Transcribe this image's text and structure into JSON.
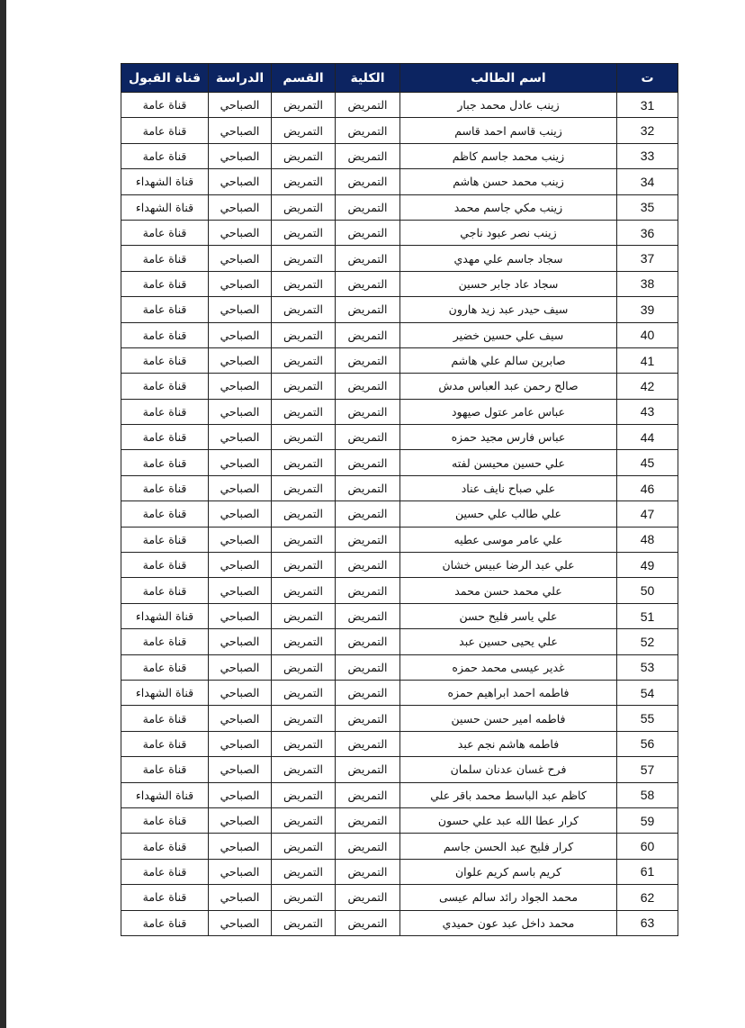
{
  "header": {
    "no": "ت",
    "name": "اسم الطالب",
    "college": "الكلية",
    "dept": "القسم",
    "study": "الدراسة",
    "channel": "قناة القبول"
  },
  "colors": {
    "header_bg": "#0c2461"
  },
  "rows": [
    [
      "31",
      "زينب عادل محمد جبار",
      "التمريض",
      "التمريض",
      "الصباحي",
      "قناة عامة"
    ],
    [
      "32",
      "زينب قاسم احمد قاسم",
      "التمريض",
      "التمريض",
      "الصباحي",
      "قناة عامة"
    ],
    [
      "33",
      "زينب محمد جاسم كاظم",
      "التمريض",
      "التمريض",
      "الصباحي",
      "قناة عامة"
    ],
    [
      "34",
      "زينب محمد حسن هاشم",
      "التمريض",
      "التمريض",
      "الصباحي",
      "قناة الشهداء"
    ],
    [
      "35",
      "زينب مكي جاسم محمد",
      "التمريض",
      "التمريض",
      "الصباحي",
      "قناة الشهداء"
    ],
    [
      "36",
      "زينب نصر عبود ناجي",
      "التمريض",
      "التمريض",
      "الصباحي",
      "قناة عامة"
    ],
    [
      "37",
      "سجاد جاسم علي مهدي",
      "التمريض",
      "التمريض",
      "الصباحي",
      "قناة عامة"
    ],
    [
      "38",
      "سجاد عاد جابر حسين",
      "التمريض",
      "التمريض",
      "الصباحي",
      "قناة عامة"
    ],
    [
      "39",
      "سيف حيدر عبد زيد هارون",
      "التمريض",
      "التمريض",
      "الصباحي",
      "قناة عامة"
    ],
    [
      "40",
      "سيف علي حسين خضير",
      "التمريض",
      "التمريض",
      "الصباحي",
      "قناة عامة"
    ],
    [
      "41",
      "صابرين سالم علي هاشم",
      "التمريض",
      "التمريض",
      "الصباحي",
      "قناة عامة"
    ],
    [
      "42",
      "صالح رحمن عبد العباس مدش",
      "التمريض",
      "التمريض",
      "الصباحي",
      "قناة عامة"
    ],
    [
      "43",
      "عباس عامر عتول صيهود",
      "التمريض",
      "التمريض",
      "الصباحي",
      "قناة عامة"
    ],
    [
      "44",
      "عباس فارس مجيد حمزه",
      "التمريض",
      "التمريض",
      "الصباحي",
      "قناة عامة"
    ],
    [
      "45",
      "علي حسين محيسن لفته",
      "التمريض",
      "التمريض",
      "الصباحي",
      "قناة عامة"
    ],
    [
      "46",
      "علي صباح نايف عناد",
      "التمريض",
      "التمريض",
      "الصباحي",
      "قناة عامة"
    ],
    [
      "47",
      "علي طالب علي حسين",
      "التمريض",
      "التمريض",
      "الصباحي",
      "قناة عامة"
    ],
    [
      "48",
      "علي عامر موسى عطيه",
      "التمريض",
      "التمريض",
      "الصباحي",
      "قناة عامة"
    ],
    [
      "49",
      "علي عبد الرضا عبيس خشان",
      "التمريض",
      "التمريض",
      "الصباحي",
      "قناة عامة"
    ],
    [
      "50",
      "علي محمد حسن محمد",
      "التمريض",
      "التمريض",
      "الصباحي",
      "قناة عامة"
    ],
    [
      "51",
      "علي ياسر فليح حسن",
      "التمريض",
      "التمريض",
      "الصباحي",
      "قناة الشهداء"
    ],
    [
      "52",
      "علي يحيى حسين عبد",
      "التمريض",
      "التمريض",
      "الصباحي",
      "قناة عامة"
    ],
    [
      "53",
      "غدير عيسى محمد حمزه",
      "التمريض",
      "التمريض",
      "الصباحي",
      "قناة عامة"
    ],
    [
      "54",
      "فاطمه احمد ابراهيم حمزه",
      "التمريض",
      "التمريض",
      "الصباحي",
      "قناة الشهداء"
    ],
    [
      "55",
      "فاطمه امير حسن حسين",
      "التمريض",
      "التمريض",
      "الصباحي",
      "قناة عامة"
    ],
    [
      "56",
      "فاطمه هاشم نجم عبد",
      "التمريض",
      "التمريض",
      "الصباحي",
      "قناة عامة"
    ],
    [
      "57",
      "فرح غسان عدنان سلمان",
      "التمريض",
      "التمريض",
      "الصباحي",
      "قناة عامة"
    ],
    [
      "58",
      "كاظم عبد الباسط محمد باقر علي",
      "التمريض",
      "التمريض",
      "الصباحي",
      "قناة الشهداء"
    ],
    [
      "59",
      "كرار عطا الله عبد علي حسون",
      "التمريض",
      "التمريض",
      "الصباحي",
      "قناة عامة"
    ],
    [
      "60",
      "كرار فليح عبد الحسن جاسم",
      "التمريض",
      "التمريض",
      "الصباحي",
      "قناة عامة"
    ],
    [
      "61",
      "كريم باسم كريم علوان",
      "التمريض",
      "التمريض",
      "الصباحي",
      "قناة عامة"
    ],
    [
      "62",
      "محمد الجواد رائد سالم عيسى",
      "التمريض",
      "التمريض",
      "الصباحي",
      "قناة عامة"
    ],
    [
      "63",
      "محمد داخل عبد عون حميدي",
      "التمريض",
      "التمريض",
      "الصباحي",
      "قناة عامة"
    ]
  ]
}
